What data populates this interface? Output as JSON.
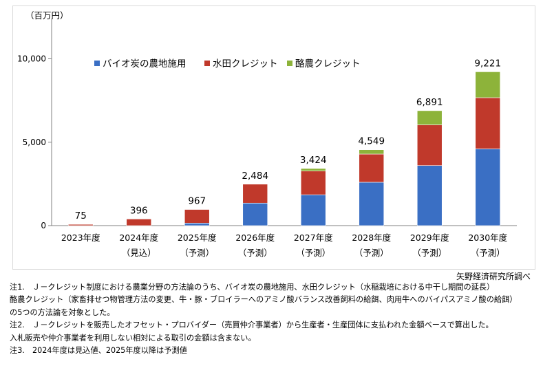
{
  "chart_data": {
    "type": "bar",
    "stacked": true,
    "unit_label": "（百万円）",
    "categories": [
      "2023年度",
      "2024年度",
      "2025年度",
      "2026年度",
      "2027年度",
      "2028年度",
      "2029年度",
      "2030年度"
    ],
    "category_sublabels": [
      "",
      "（見込）",
      "（予測）",
      "（予測）",
      "（予測）",
      "（予測）",
      "（予測）",
      "（予測）"
    ],
    "totals": [
      75,
      396,
      967,
      2484,
      3424,
      4549,
      6891,
      9221
    ],
    "total_labels": [
      "75",
      "396",
      "967",
      "2,484",
      "3,424",
      "4,549",
      "6,891",
      "9,221"
    ],
    "series": [
      {
        "name": "バイオ炭の農地施用",
        "color": "#3a6fc4",
        "values": [
          0,
          0,
          150,
          1350,
          1850,
          2600,
          3600,
          4600
        ]
      },
      {
        "name": "水田クレジット",
        "color": "#c0392b",
        "values": [
          75,
          396,
          817,
          1134,
          1424,
          1689,
          2441,
          3071
        ]
      },
      {
        "name": "酪農クレジット",
        "color": "#8db33a",
        "values": [
          0,
          0,
          0,
          0,
          150,
          260,
          850,
          1550
        ]
      }
    ],
    "ylim": [
      0,
      12000
    ],
    "yticks": [
      0,
      5000,
      10000
    ],
    "ytick_labels": [
      "0",
      "5,000",
      "10,000"
    ],
    "legend_position": "top-left"
  },
  "source": "矢野経済研究所調べ",
  "notes": [
    "注1.　Ｊ－クレジット制度における農業分野の方法論のうち、バイオ炭の農地施用、水田クレジット（水稲栽培における中干し期間の延長）",
    "酪農クレジット（家畜排せつ物管理方法の変更、牛・豚・ブロイラーへのアミノ酸バランス改善飼料の給餌、肉用牛へのバイパスアミノ酸の給餌）",
    "の5つの方法論を対象とした。",
    "注2.　Ｊ－クレジットを販売したオフセット・プロバイダー（売買仲介事業者）から生産者・生産団体に支払われた金額ベースで算出した。",
    "入札販売や仲介事業者を利用しない相対による取引の金額は含まない。",
    "注3.　2024年度は見込値、2025年度以降は予測値"
  ]
}
